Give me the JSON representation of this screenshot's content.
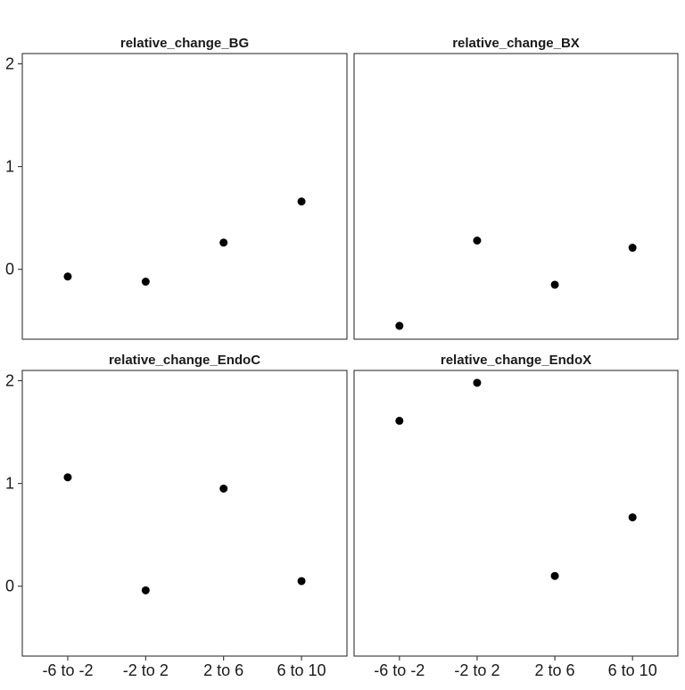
{
  "chart_data": {
    "type": "scatter",
    "layout": "facet-2x2",
    "categories": [
      "-6 to -2",
      "-2 to 2",
      "2 to 6",
      "6 to 10"
    ],
    "y_ticks": [
      0,
      1,
      2
    ],
    "y_tick_labels": [
      "0",
      "1",
      "2"
    ],
    "ylim": [
      -0.68,
      2.1
    ],
    "shared_y_axis": true,
    "grid": false,
    "point_color": "#000000",
    "panels": [
      {
        "title": "relative_change_BG",
        "values": [
          -0.07,
          -0.12,
          0.26,
          0.66
        ]
      },
      {
        "title": "relative_change_BX",
        "values": [
          -0.55,
          0.28,
          -0.15,
          0.21
        ]
      },
      {
        "title": "relative_change_EndoC",
        "values": [
          1.06,
          -0.04,
          0.95,
          0.05
        ]
      },
      {
        "title": "relative_change_EndoX",
        "values": [
          1.61,
          1.98,
          0.1,
          0.67
        ]
      }
    ]
  }
}
